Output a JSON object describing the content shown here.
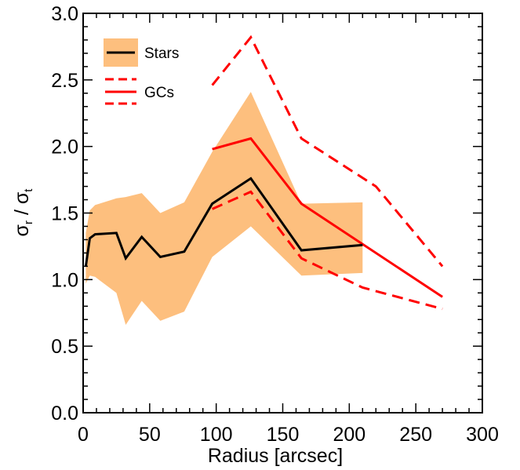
{
  "chart_data": {
    "type": "line",
    "xlabel": "Radius [arcsec]",
    "ylabel": {
      "main": "σ",
      "sub_r": "r",
      "slash": " / ",
      "main2": "σ",
      "sub_t": "t"
    },
    "xlim": [
      0,
      300
    ],
    "ylim": [
      0,
      3
    ],
    "xticks": [
      "0",
      "50",
      "100",
      "150",
      "200",
      "250",
      "300"
    ],
    "yticks": [
      "0.0",
      "0.5",
      "1.0",
      "1.5",
      "2.0",
      "2.5",
      "3.0"
    ],
    "grid": false,
    "legend_position": "top-left",
    "colors": {
      "band": "#fdbf7e",
      "stars": "#000000",
      "gcs": "#ff0000"
    },
    "legend": {
      "stars": "Stars",
      "gcs": "GCs"
    },
    "series": [
      {
        "name": "Stars",
        "x": [
          2,
          5,
          9,
          25,
          32,
          44,
          58,
          76,
          97,
          126,
          164,
          210
        ],
        "y": [
          1.1,
          1.31,
          1.34,
          1.35,
          1.16,
          1.32,
          1.17,
          1.21,
          1.57,
          1.76,
          1.22,
          1.26
        ],
        "upper": [
          1.35,
          1.52,
          1.56,
          1.61,
          1.62,
          1.65,
          1.5,
          1.58,
          1.96,
          2.41,
          1.57,
          1.58
        ],
        "lower": [
          0.97,
          1.03,
          1.02,
          0.9,
          0.66,
          0.84,
          0.69,
          0.76,
          1.17,
          1.4,
          1.03,
          1.05
        ]
      },
      {
        "name": "GCs",
        "x": [
          97,
          126,
          164,
          270
        ],
        "y": [
          1.98,
          2.06,
          1.57,
          0.87
        ],
        "upper": [
          2.46,
          2.82,
          2.06,
          1.1
        ],
        "lower": [
          1.53,
          1.66,
          1.16,
          0.78
        ],
        "upper_x": [
          97,
          126,
          164,
          220,
          270
        ],
        "upper_y": [
          2.46,
          2.82,
          2.06,
          1.7,
          1.1
        ],
        "lower_x": [
          97,
          126,
          164,
          210,
          270
        ],
        "lower_y": [
          1.53,
          1.66,
          1.16,
          0.94,
          0.78
        ]
      }
    ]
  }
}
